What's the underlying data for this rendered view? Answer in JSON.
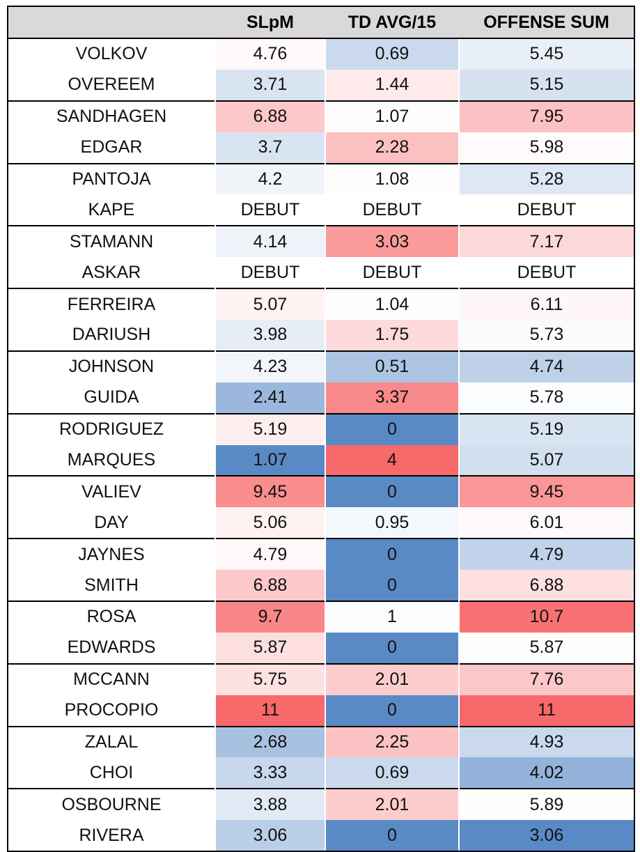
{
  "chart_data": {
    "type": "table",
    "columns": [
      "",
      "SLpM",
      "TD AVG/15",
      "OFFENSE SUM"
    ],
    "rows": [
      {
        "name": "VOLKOV",
        "slpm": "4.76",
        "td": "0.69",
        "off": "5.45"
      },
      {
        "name": "OVEREEM",
        "slpm": "3.71",
        "td": "1.44",
        "off": "5.15"
      },
      {
        "name": "SANDHAGEN",
        "slpm": "6.88",
        "td": "1.07",
        "off": "7.95"
      },
      {
        "name": "EDGAR",
        "slpm": "3.7",
        "td": "2.28",
        "off": "5.98"
      },
      {
        "name": "PANTOJA",
        "slpm": "4.2",
        "td": "1.08",
        "off": "5.28"
      },
      {
        "name": "KAPE",
        "slpm": "DEBUT",
        "td": "DEBUT",
        "off": "DEBUT"
      },
      {
        "name": "STAMANN",
        "slpm": "4.14",
        "td": "3.03",
        "off": "7.17"
      },
      {
        "name": "ASKAR",
        "slpm": "DEBUT",
        "td": "DEBUT",
        "off": "DEBUT"
      },
      {
        "name": "FERREIRA",
        "slpm": "5.07",
        "td": "1.04",
        "off": "6.11"
      },
      {
        "name": "DARIUSH",
        "slpm": "3.98",
        "td": "1.75",
        "off": "5.73"
      },
      {
        "name": "JOHNSON",
        "slpm": "4.23",
        "td": "0.51",
        "off": "4.74"
      },
      {
        "name": "GUIDA",
        "slpm": "2.41",
        "td": "3.37",
        "off": "5.78"
      },
      {
        "name": "RODRIGUEZ",
        "slpm": "5.19",
        "td": "0",
        "off": "5.19"
      },
      {
        "name": "MARQUES",
        "slpm": "1.07",
        "td": "4",
        "off": "5.07"
      },
      {
        "name": "VALIEV",
        "slpm": "9.45",
        "td": "0",
        "off": "9.45"
      },
      {
        "name": "DAY",
        "slpm": "5.06",
        "td": "0.95",
        "off": "6.01"
      },
      {
        "name": "JAYNES",
        "slpm": "4.79",
        "td": "0",
        "off": "4.79"
      },
      {
        "name": "SMITH",
        "slpm": "6.88",
        "td": "0",
        "off": "6.88"
      },
      {
        "name": "ROSA",
        "slpm": "9.7",
        "td": "1",
        "off": "10.7"
      },
      {
        "name": "EDWARDS",
        "slpm": "5.87",
        "td": "0",
        "off": "5.87"
      },
      {
        "name": "MCCANN",
        "slpm": "5.75",
        "td": "2.01",
        "off": "7.76"
      },
      {
        "name": "PROCOPIO",
        "slpm": "11",
        "td": "0",
        "off": "11"
      },
      {
        "name": "ZALAL",
        "slpm": "2.68",
        "td": "2.25",
        "off": "4.93"
      },
      {
        "name": "CHOI",
        "slpm": "3.33",
        "td": "0.69",
        "off": "4.02"
      },
      {
        "name": "OSBOURNE",
        "slpm": "3.88",
        "td": "2.01",
        "off": "5.89"
      },
      {
        "name": "RIVERA",
        "slpm": "3.06",
        "td": "0",
        "off": "3.06"
      }
    ],
    "color_scale": {
      "low": "#5a8ac6",
      "mid": "#ffffff",
      "high": "#f8696b",
      "header_bg": "#d9d9d9"
    }
  }
}
